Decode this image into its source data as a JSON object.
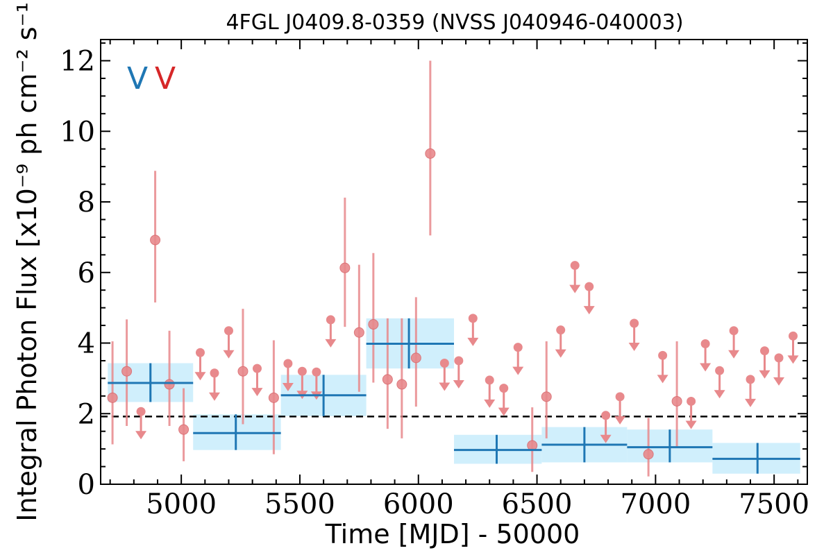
{
  "chart_data": {
    "type": "scatter",
    "title": "4FGL J0409.8-0359 (NVSS J040946-040003)",
    "xlabel": "Time [MJD] - 50000",
    "ylabel": "Integral Photon Flux [x10⁻⁹ ph cm⁻² s⁻¹]",
    "xlim": [
      4660,
      7640
    ],
    "ylim": [
      0,
      12.6
    ],
    "xticks": [
      5000,
      5500,
      6000,
      6500,
      7000,
      7500
    ],
    "yticks": [
      0,
      2,
      4,
      6,
      8,
      10,
      12
    ],
    "grid": false,
    "legend_markers": [
      {
        "text": "V",
        "color": "#1f77b4"
      },
      {
        "text": "V",
        "color": "#d62728"
      }
    ],
    "average_flux_line": 1.92,
    "colors": {
      "bins": "#1f77b4",
      "bin_band": "#cdeefc",
      "points": "#e8898c",
      "avg_line": "#000000"
    },
    "bins": [
      {
        "x": 4870,
        "xlo": 4690,
        "xhi": 5050,
        "y": 2.87,
        "ylo": 2.33,
        "yhi": 3.43
      },
      {
        "x": 5230,
        "xlo": 5050,
        "xhi": 5420,
        "y": 1.45,
        "ylo": 0.97,
        "yhi": 1.98
      },
      {
        "x": 5600,
        "xlo": 5420,
        "xhi": 5780,
        "y": 2.52,
        "ylo": 1.93,
        "yhi": 3.1
      },
      {
        "x": 5960,
        "xlo": 5780,
        "xhi": 6150,
        "y": 3.98,
        "ylo": 3.28,
        "yhi": 4.7
      },
      {
        "x": 6330,
        "xlo": 6150,
        "xhi": 6520,
        "y": 0.97,
        "ylo": 0.58,
        "yhi": 1.4
      },
      {
        "x": 6700,
        "xlo": 6520,
        "xhi": 6880,
        "y": 1.12,
        "ylo": 0.62,
        "yhi": 1.62
      },
      {
        "x": 7060,
        "xlo": 6880,
        "xhi": 7240,
        "y": 1.05,
        "ylo": 0.62,
        "yhi": 1.55
      },
      {
        "x": 7430,
        "xlo": 7240,
        "xhi": 7610,
        "y": 0.72,
        "ylo": 0.3,
        "yhi": 1.17
      }
    ],
    "points": [
      {
        "x": 4710,
        "y": 2.45,
        "ylo": 1.13,
        "yhi": 4.05
      },
      {
        "x": 4770,
        "y": 3.2,
        "ylo": 1.65,
        "yhi": 4.67
      },
      {
        "x": 4830,
        "y": 2.06,
        "ul": true
      },
      {
        "x": 4890,
        "y": 6.92,
        "ylo": 5.15,
        "yhi": 8.88
      },
      {
        "x": 4950,
        "y": 2.83,
        "ylo": 1.65,
        "yhi": 4.35
      },
      {
        "x": 5010,
        "y": 1.55,
        "ylo": 0.65,
        "yhi": 2.72
      },
      {
        "x": 5080,
        "y": 3.73,
        "ul": true
      },
      {
        "x": 5140,
        "y": 3.15,
        "ul": true
      },
      {
        "x": 5200,
        "y": 4.35,
        "ul": true
      },
      {
        "x": 5260,
        "y": 3.2,
        "ylo": 1.7,
        "yhi": 4.97
      },
      {
        "x": 5320,
        "y": 3.28,
        "ul": true
      },
      {
        "x": 5390,
        "y": 2.45,
        "ylo": 0.85,
        "yhi": 4.08
      },
      {
        "x": 5450,
        "y": 3.42,
        "ul": true
      },
      {
        "x": 5510,
        "y": 3.2,
        "ul": true
      },
      {
        "x": 5570,
        "y": 3.18,
        "ul": true
      },
      {
        "x": 5630,
        "y": 4.66,
        "ul": true
      },
      {
        "x": 5690,
        "y": 6.13,
        "ylo": 4.46,
        "yhi": 8.12
      },
      {
        "x": 5750,
        "y": 4.3,
        "ylo": 2.62,
        "yhi": 6.22
      },
      {
        "x": 5810,
        "y": 4.53,
        "ylo": 2.88,
        "yhi": 6.55
      },
      {
        "x": 5870,
        "y": 2.97,
        "ylo": 1.57,
        "yhi": 4.7
      },
      {
        "x": 5930,
        "y": 2.83,
        "ylo": 1.3,
        "yhi": 4.7
      },
      {
        "x": 5990,
        "y": 3.58,
        "ylo": 2.2,
        "yhi": 5.3
      },
      {
        "x": 6050,
        "y": 9.37,
        "ylo": 7.05,
        "yhi": 12.0
      },
      {
        "x": 6110,
        "y": 3.43,
        "ul": true
      },
      {
        "x": 6170,
        "y": 3.5,
        "ul": true
      },
      {
        "x": 6230,
        "y": 4.7,
        "ul": true
      },
      {
        "x": 6300,
        "y": 2.95,
        "ul": true
      },
      {
        "x": 6360,
        "y": 2.72,
        "ul": true
      },
      {
        "x": 6420,
        "y": 3.88,
        "ul": true
      },
      {
        "x": 6480,
        "y": 1.1,
        "ylo": 0.35,
        "yhi": 2.18
      },
      {
        "x": 6540,
        "y": 2.48,
        "ylo": 1.3,
        "yhi": 4.05
      },
      {
        "x": 6600,
        "y": 4.37,
        "ul": true
      },
      {
        "x": 6660,
        "y": 6.2,
        "ul": true
      },
      {
        "x": 6720,
        "y": 5.6,
        "ul": true
      },
      {
        "x": 6790,
        "y": 1.95,
        "ul": true
      },
      {
        "x": 6850,
        "y": 2.48,
        "ul": true
      },
      {
        "x": 6910,
        "y": 4.56,
        "ul": true
      },
      {
        "x": 6970,
        "y": 0.85,
        "ylo": 0.22,
        "yhi": 1.88
      },
      {
        "x": 7030,
        "y": 3.65,
        "ul": true
      },
      {
        "x": 7090,
        "y": 2.35,
        "ylo": 1.05,
        "yhi": 4.05
      },
      {
        "x": 7150,
        "y": 2.35,
        "ul": true
      },
      {
        "x": 7210,
        "y": 3.98,
        "ul": true
      },
      {
        "x": 7270,
        "y": 3.22,
        "ul": true
      },
      {
        "x": 7330,
        "y": 4.35,
        "ul": true
      },
      {
        "x": 7400,
        "y": 2.97,
        "ul": true
      },
      {
        "x": 7460,
        "y": 3.78,
        "ul": true
      },
      {
        "x": 7520,
        "y": 3.58,
        "ul": true
      },
      {
        "x": 7580,
        "y": 4.2,
        "ul": true
      }
    ]
  }
}
